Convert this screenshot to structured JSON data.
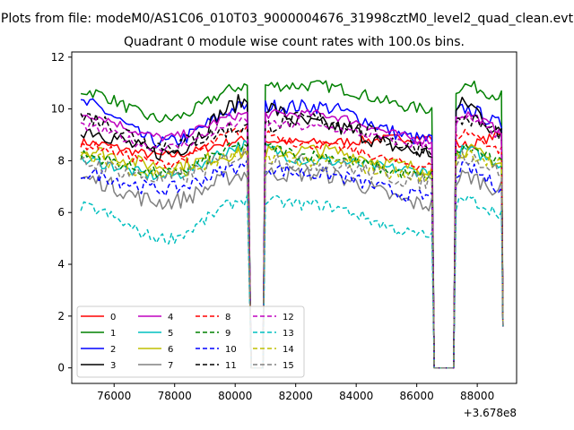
{
  "chart_data": {
    "type": "line",
    "suptitle": "Plots from file: modeM0/AS1C06_010T03_9000004676_31998cztM0_level2_quad_clean.evt",
    "title": "Quadrant 0 module wise count rates with 100.0s bins.",
    "xlabel": "",
    "ylabel": "",
    "x_offset_label": "+3.678e8",
    "xlim": [
      74600,
      89300
    ],
    "ylim": [
      -0.6,
      12.2
    ],
    "x_ticks": [
      76000,
      78000,
      80000,
      82000,
      84000,
      86000,
      88000
    ],
    "x_tick_labels": [
      "76000",
      "78000",
      "80000",
      "82000",
      "84000",
      "86000",
      "88000"
    ],
    "y_ticks": [
      0,
      2,
      4,
      6,
      8,
      10,
      12
    ],
    "y_tick_labels": [
      "0",
      "2",
      "4",
      "6",
      "8",
      "10",
      "12"
    ],
    "segments": [
      [
        74900,
        80450
      ],
      [
        81000,
        86500
      ],
      [
        87300,
        88850
      ]
    ],
    "gap_value": 0,
    "grid": false,
    "legend_position": "lower-left",
    "series": [
      {
        "name": "0",
        "color": "#ff0000",
        "dash": "solid",
        "levels": [
          8.7,
          8.2,
          8.8,
          8.7,
          8.9,
          8.6,
          9.0
        ]
      },
      {
        "name": "1",
        "color": "#008000",
        "dash": "solid",
        "levels": [
          10.7,
          9.6,
          10.9,
          10.9,
          10.0,
          10.9,
          10.5
        ]
      },
      {
        "name": "2",
        "color": "#0000ff",
        "dash": "solid",
        "levels": [
          10.2,
          8.7,
          10.1,
          10.1,
          8.8,
          10.0,
          9.4
        ]
      },
      {
        "name": "3",
        "color": "#000000",
        "dash": "solid",
        "levels": [
          9.2,
          8.3,
          10.3,
          9.4,
          8.3,
          10.2,
          9.0
        ]
      },
      {
        "name": "4",
        "color": "#bf00bf",
        "dash": "solid",
        "levels": [
          9.8,
          8.9,
          9.8,
          9.8,
          8.8,
          9.8,
          9.2
        ]
      },
      {
        "name": "5",
        "color": "#00bfbf",
        "dash": "solid",
        "levels": [
          8.0,
          7.4,
          8.6,
          8.0,
          7.6,
          8.4,
          7.9
        ]
      },
      {
        "name": "6",
        "color": "#bfbf00",
        "dash": "solid",
        "levels": [
          8.4,
          7.8,
          8.3,
          8.4,
          7.7,
          8.4,
          7.9
        ]
      },
      {
        "name": "7",
        "color": "#808080",
        "dash": "solid",
        "levels": [
          7.3,
          6.4,
          7.5,
          7.5,
          6.3,
          7.4,
          6.9
        ]
      },
      {
        "name": "8",
        "color": "#ff0000",
        "dash": "dashed",
        "levels": [
          8.6,
          7.9,
          9.2,
          8.6,
          7.8,
          9.1,
          8.4
        ]
      },
      {
        "name": "9",
        "color": "#008000",
        "dash": "dashed",
        "levels": [
          8.2,
          7.5,
          8.6,
          8.2,
          7.4,
          8.5,
          7.9
        ]
      },
      {
        "name": "10",
        "color": "#0000ff",
        "dash": "dashed",
        "levels": [
          7.5,
          6.9,
          7.8,
          7.5,
          6.6,
          7.7,
          7.0
        ]
      },
      {
        "name": "11",
        "color": "#000000",
        "dash": "dashed",
        "levels": [
          9.7,
          8.6,
          9.3,
          9.6,
          8.5,
          9.6,
          9.1
        ]
      },
      {
        "name": "12",
        "color": "#bf00bf",
        "dash": "dashed",
        "levels": [
          9.3,
          8.5,
          9.5,
          9.3,
          8.6,
          9.6,
          9.0
        ]
      },
      {
        "name": "13",
        "color": "#00bfbf",
        "dash": "dashed",
        "levels": [
          6.2,
          5.0,
          6.5,
          6.3,
          5.1,
          6.5,
          6.0
        ]
      },
      {
        "name": "14",
        "color": "#bfbf00",
        "dash": "dashed",
        "levels": [
          8.1,
          7.5,
          8.2,
          8.0,
          7.4,
          8.3,
          7.8
        ]
      },
      {
        "name": "15",
        "color": "#808080",
        "dash": "dashed",
        "levels": [
          7.9,
          7.3,
          8.2,
          7.9,
          7.2,
          8.2,
          7.6
        ]
      }
    ]
  }
}
